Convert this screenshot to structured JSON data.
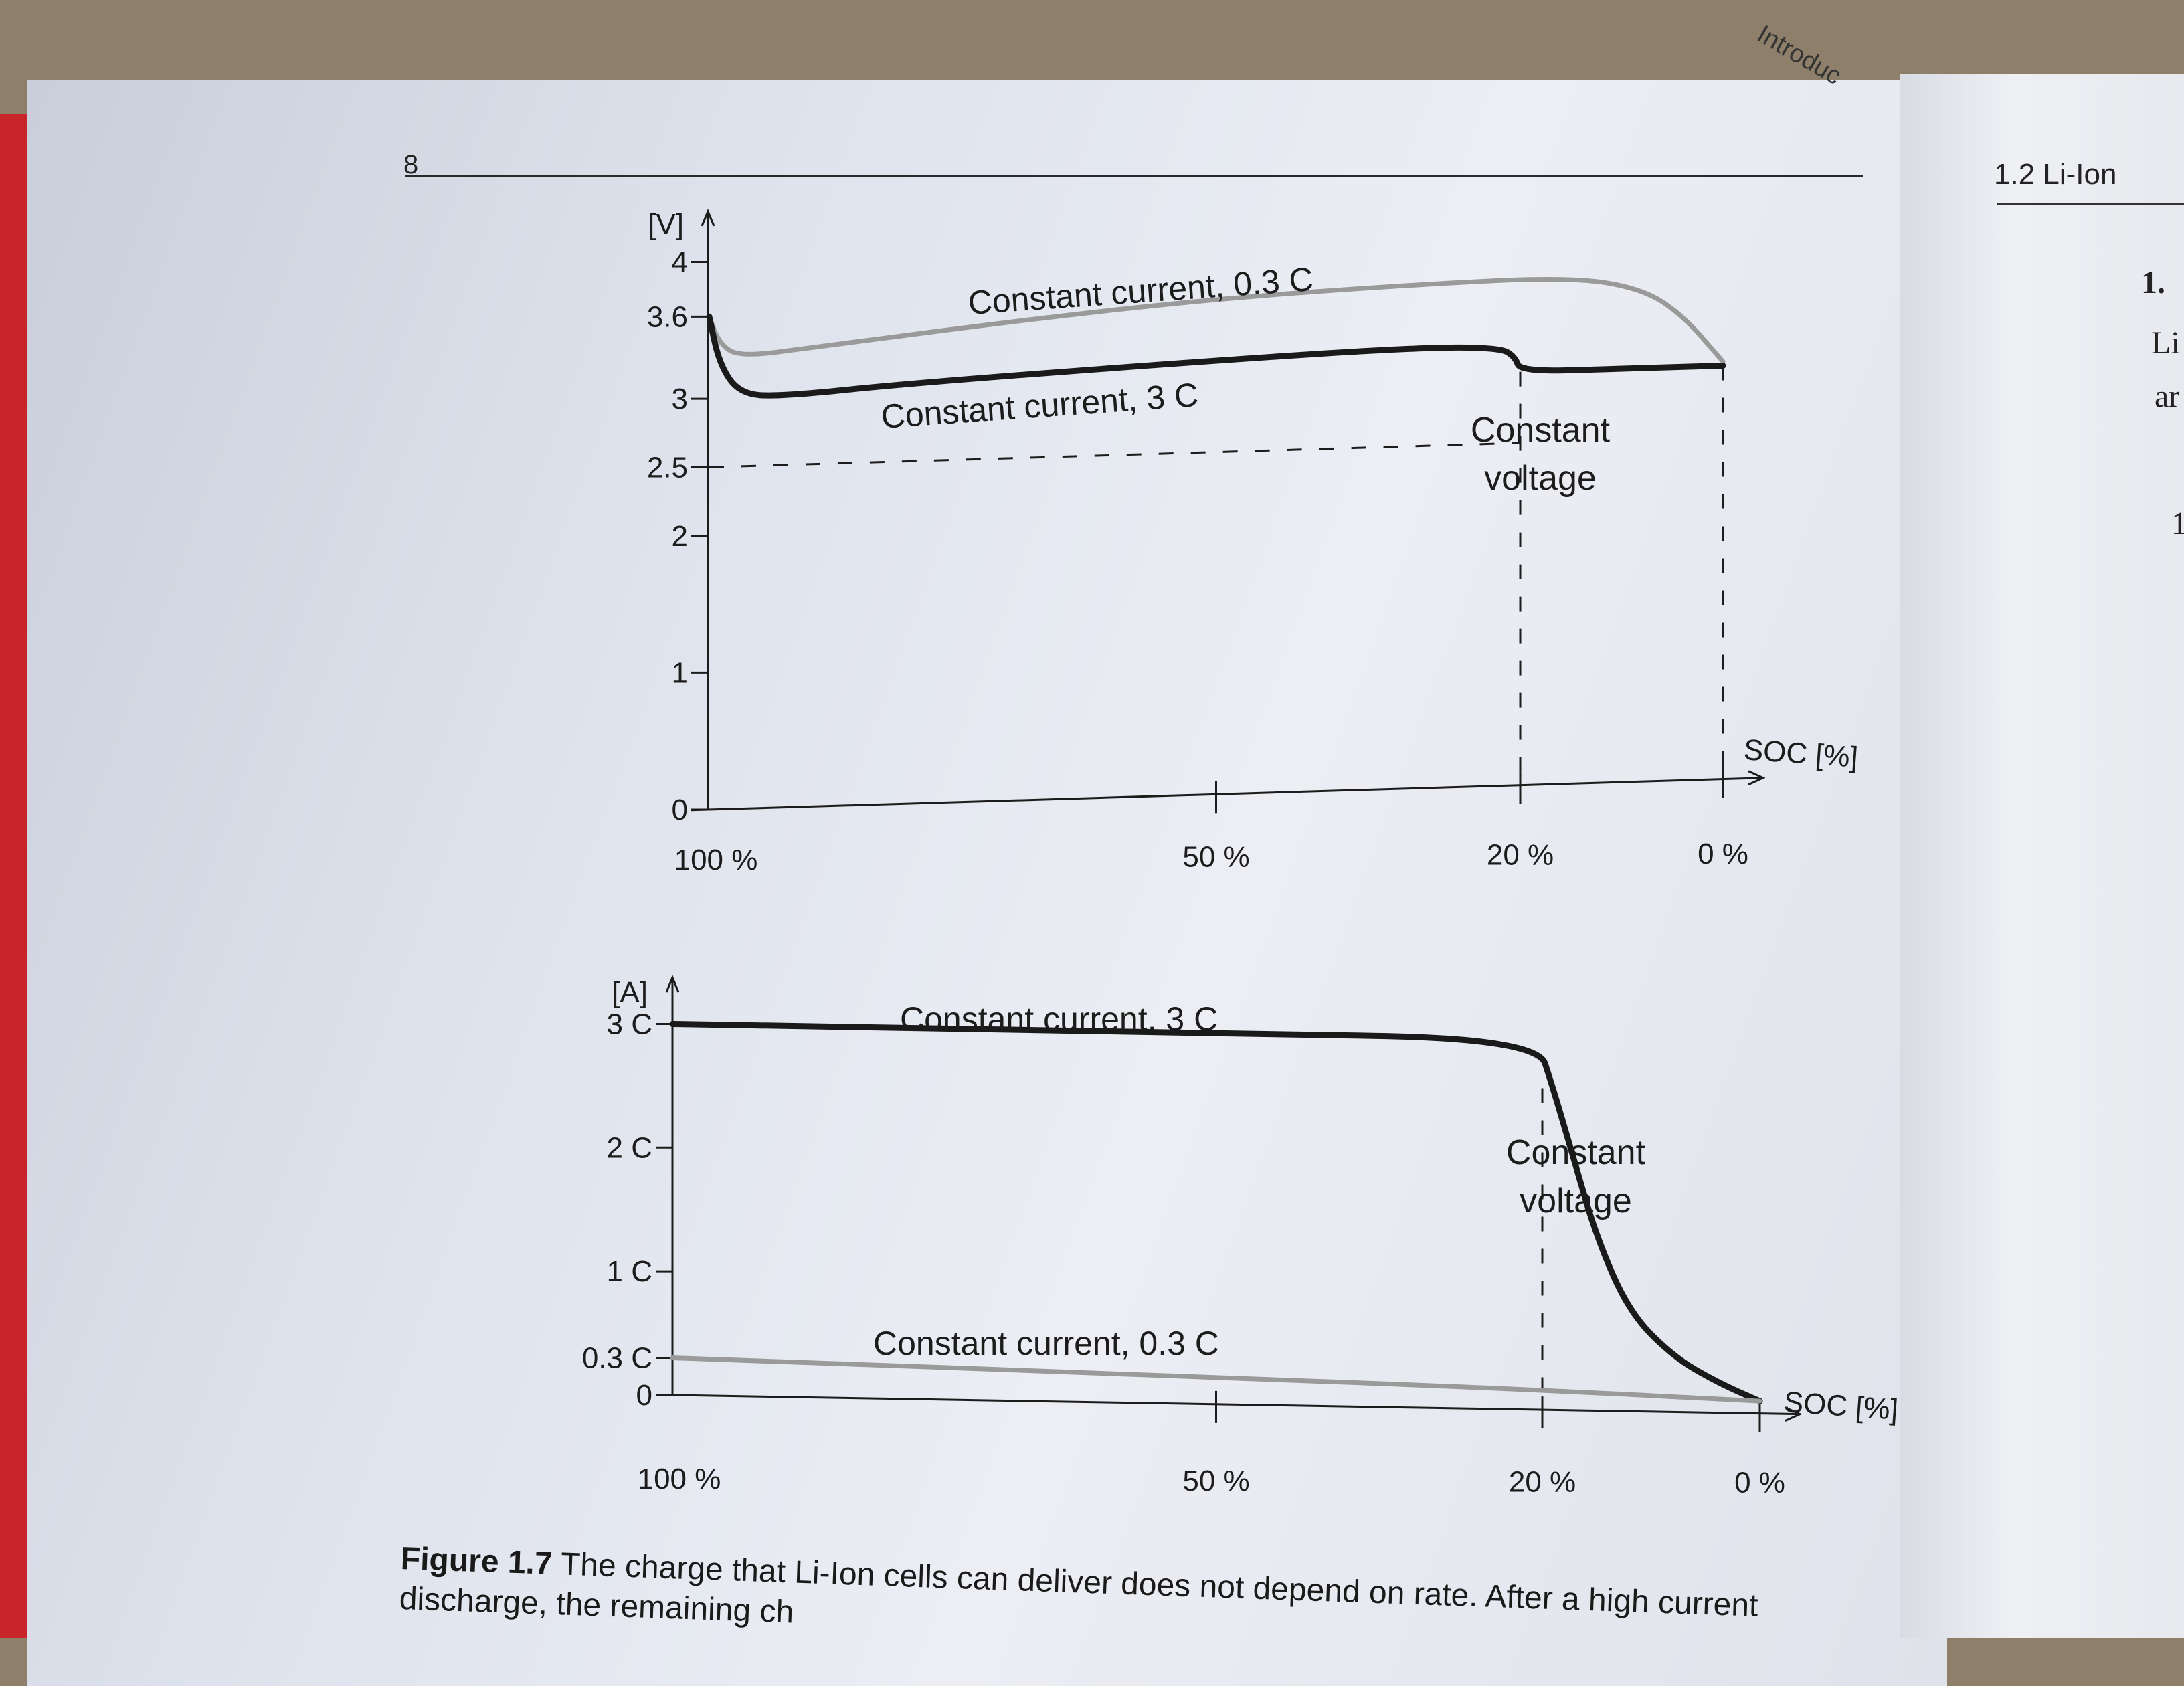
{
  "page": {
    "number": "8",
    "running_head": "Introduc",
    "right_section": "1.2   Li-Ion",
    "right_fragments": [
      "1.",
      "Li",
      "ar",
      "1"
    ]
  },
  "colors": {
    "heavy_curve": "#1a1a1a",
    "light_curve": "#9a9a9a",
    "ink": "#1c1c1c"
  },
  "chart_data": [
    {
      "type": "line",
      "x_label": "SOC [%]",
      "y_label": "[V]",
      "x_ticks": [
        "100 %",
        "50 %",
        "20 %",
        "0 %"
      ],
      "x_tick_values": [
        100,
        50,
        20,
        0
      ],
      "y_ticks": [
        "0",
        "1",
        "2",
        "2.5",
        "3",
        "3.6",
        "4"
      ],
      "y_tick_values": [
        0,
        1,
        2,
        2.5,
        3,
        3.6,
        4
      ],
      "xlim": [
        100,
        0
      ],
      "ylim": [
        0,
        4.3
      ],
      "series": [
        {
          "name": "Constant current, 0.3 C",
          "style": "light",
          "x": [
            100,
            99,
            97,
            90,
            70,
            50,
            30,
            15,
            8,
            4,
            0
          ],
          "y": [
            3.6,
            3.4,
            3.3,
            3.35,
            3.5,
            3.62,
            3.68,
            3.7,
            3.6,
            3.4,
            3.05
          ]
        },
        {
          "name": "Constant current, 3 C",
          "style": "heavy",
          "x": [
            100,
            99,
            97,
            93,
            80,
            50,
            30,
            22,
            20.5,
            20,
            10,
            0
          ],
          "y": [
            3.6,
            3.25,
            3.03,
            3.0,
            3.07,
            3.17,
            3.22,
            3.2,
            3.13,
            3.02,
            3.02,
            3.02
          ]
        }
      ],
      "reference_lines": [
        {
          "type": "horizontal",
          "y": 2.5,
          "x_from": 100,
          "x_to": 20
        },
        {
          "type": "vertical",
          "x": 20,
          "y_from": 0,
          "y_to": 3.02
        },
        {
          "type": "vertical",
          "x": 0,
          "y_from": 0,
          "y_to": 3.02
        }
      ],
      "annotations": [
        "Constant current, 0.3 C",
        "Constant current, 3 C",
        "Constant voltage"
      ]
    },
    {
      "type": "line",
      "x_label": "SOC [%]",
      "y_label": "[A]",
      "x_ticks": [
        "100 %",
        "50 %",
        "20 %",
        "0 %"
      ],
      "x_tick_values": [
        100,
        50,
        20,
        0
      ],
      "y_ticks": [
        "0",
        "0.3 C",
        "1 C",
        "2 C",
        "3 C"
      ],
      "y_tick_values": [
        0,
        0.3,
        1,
        2,
        3
      ],
      "xlim": [
        100,
        0
      ],
      "ylim": [
        0,
        3.3
      ],
      "series": [
        {
          "name": "Constant current, 3 C",
          "style": "heavy",
          "x": [
            100,
            50,
            20.5,
            19,
            17,
            15,
            12,
            8,
            4,
            0
          ],
          "y": [
            3,
            3,
            3,
            2.6,
            2.0,
            1.4,
            0.8,
            0.45,
            0.25,
            0.1
          ]
        },
        {
          "name": "Constant current, 0.3 C",
          "style": "light",
          "x": [
            100,
            50,
            20,
            0
          ],
          "y": [
            0.3,
            0.22,
            0.16,
            0.1
          ]
        }
      ],
      "reference_lines": [
        {
          "type": "vertical",
          "x": 20,
          "y_from": 0,
          "y_to": 2.6
        }
      ],
      "annotations": [
        "Constant current, 3 C",
        "Constant voltage",
        "Constant current, 0.3 C"
      ]
    }
  ],
  "caption": {
    "label": "Figure 1.7",
    "line1": "The charge that Li-Ion cells can deliver does not depend on rate. After a high current",
    "line2": "discharge, the remaining ch"
  }
}
